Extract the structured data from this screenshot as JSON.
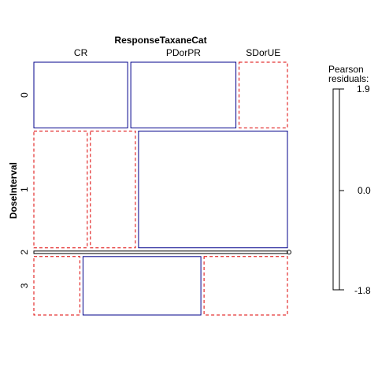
{
  "chart_data": {
    "type": "mosaic",
    "column_variable": "ResponseTaxaneCat",
    "row_variable": "DoseInterval",
    "columns": [
      "CR",
      "PDorPR",
      "SDorUE"
    ],
    "rows": [
      "0",
      "1",
      "2",
      "3"
    ],
    "cell_proportions": [
      [
        0.33,
        0.37,
        0.17
      ],
      [
        0.19,
        0.16,
        0.53
      ],
      [
        0.0,
        0.0,
        0.0
      ],
      [
        0.16,
        0.41,
        0.29
      ]
    ],
    "row_proportions": [
      0.27,
      0.48,
      0.01,
      0.24
    ],
    "cell_sign": [
      [
        "positive",
        "positive",
        "negative"
      ],
      [
        "negative",
        "negative",
        "positive"
      ],
      [
        "zero",
        "zero",
        "zero"
      ],
      [
        "negative",
        "positive",
        "negative"
      ]
    ],
    "legend": {
      "title_line1": "Pearson",
      "title_line2": "residuals:",
      "max": "1.9",
      "mid": "0.0",
      "min": "-1.8"
    },
    "colors": {
      "positive": "#00008b",
      "negative": "#dd0000",
      "neutral": "#000000"
    }
  }
}
